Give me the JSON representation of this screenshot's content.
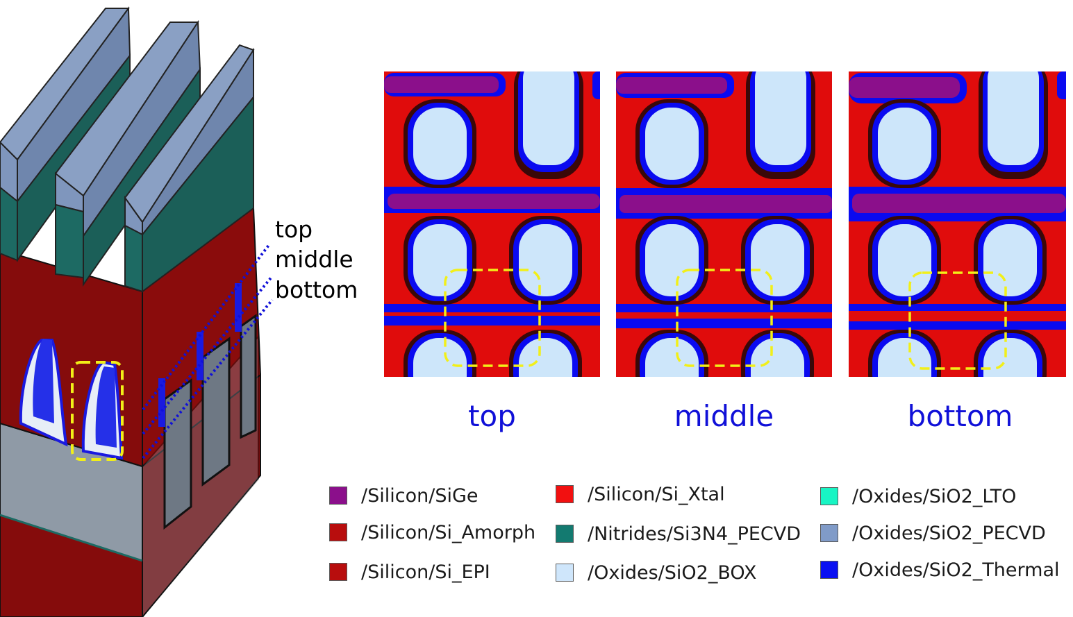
{
  "callouts": [
    "top",
    "middle",
    "bottom"
  ],
  "panels": [
    {
      "caption": "top"
    },
    {
      "caption": "middle"
    },
    {
      "caption": "bottom"
    }
  ],
  "colors": {
    "caption": "#1010d8",
    "dash_yellow": "#f2ef18",
    "si_xtal": "#e00c0c",
    "sige": "#8b0f8b",
    "thermal": "#0a0af0",
    "box": "#cde6fa",
    "amorph": "#850c0c",
    "nitride": "#1d6a63",
    "pecvd": "#7f96bd",
    "gray_oxide": "#8f9aa6"
  },
  "legend": [
    {
      "label": "/Silicon/SiGe",
      "color": "#8b0f8b"
    },
    {
      "label": "/Silicon/Si_Amorph",
      "color": "#b80d0d"
    },
    {
      "label": "/Silicon/Si_EPI",
      "color": "#b80d0d"
    },
    {
      "label": "/Silicon/Si_Xtal",
      "color": "#f21010"
    },
    {
      "label": "/Nitrides/Si3N4_PECVD",
      "color": "#137a70"
    },
    {
      "label": "/Oxides/SiO2_BOX",
      "color": "#cfe6fb"
    },
    {
      "label": "/Oxides/SiO2_LTO",
      "color": "#18f5c4"
    },
    {
      "label": "/Oxides/SiO2_PECVD",
      "color": "#809bc8"
    },
    {
      "label": "/Oxides/SiO2_Thermal",
      "color": "#0a10f2"
    }
  ]
}
